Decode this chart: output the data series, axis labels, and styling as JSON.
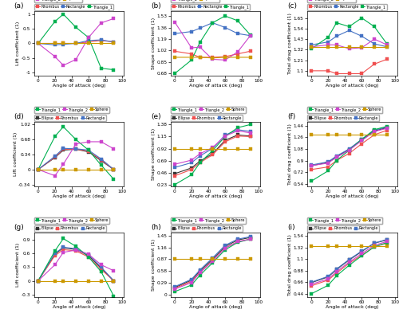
{
  "x": [
    0,
    20,
    30,
    45,
    60,
    75,
    90
  ],
  "panels": {
    "a": {
      "title": "(a)",
      "ylabel": "Lift coefficient (1)",
      "xlabel": "Angle of attack (deg)",
      "ylim": [
        -1.1,
        1.1
      ],
      "yticks": [
        -1.0,
        -0.5,
        0.0,
        0.5,
        1.0
      ],
      "n_series": 5,
      "series": {
        "Rhombus": [
          0.0,
          0.0,
          0.0,
          0.0,
          0.05,
          0.1,
          0.05
        ],
        "Rectangle": [
          0.0,
          -0.05,
          -0.03,
          0.0,
          0.1,
          0.12,
          0.05
        ],
        "Triangle_1": [
          0.0,
          0.75,
          1.0,
          0.55,
          0.2,
          -0.85,
          -0.9
        ],
        "Triangle_2": [
          0.0,
          -0.45,
          -0.75,
          -0.55,
          0.2,
          0.7,
          0.85
        ],
        "Sphere": [
          0.0,
          0.0,
          0.0,
          0.0,
          0.0,
          0.0,
          0.0
        ]
      }
    },
    "b": {
      "title": "(b)",
      "ylabel": "Shape coefficient (1)",
      "xlabel": "Angle of attack (deg)",
      "ylim": [
        0.65,
        1.6
      ],
      "yticks": [
        0.68,
        0.85,
        1.02,
        1.19,
        1.36,
        1.53
      ],
      "n_series": 5,
      "series": {
        "Rhombus": [
          1.01,
          0.97,
          0.92,
          0.92,
          0.93,
          0.97,
          1.01
        ],
        "Rectangle": [
          1.27,
          1.3,
          1.35,
          1.43,
          1.36,
          1.27,
          1.24
        ],
        "Triangle_1": [
          0.68,
          0.88,
          1.14,
          1.43,
          1.53,
          1.46,
          1.25
        ],
        "Triangle_2": [
          1.44,
          1.06,
          1.07,
          0.89,
          0.88,
          1.0,
          1.24
        ],
        "Sphere": [
          0.92,
          0.92,
          0.92,
          0.91,
          0.92,
          0.92,
          0.92
        ]
      }
    },
    "c": {
      "title": "(c)",
      "ylabel": "Total drag coefficient (1)",
      "xlabel": "Angle of attack (deg)",
      "ylim": [
        1.05,
        1.72
      ],
      "yticks": [
        1.1,
        1.21,
        1.32,
        1.43,
        1.54,
        1.65
      ],
      "n_series": 5,
      "series": {
        "Rhombus": [
          1.1,
          1.1,
          1.07,
          1.07,
          1.07,
          1.17,
          1.22
        ],
        "Rectangle": [
          1.37,
          1.4,
          1.46,
          1.52,
          1.46,
          1.38,
          1.35
        ],
        "Triangle_1": [
          1.33,
          1.45,
          1.6,
          1.56,
          1.65,
          1.56,
          1.38
        ],
        "Triangle_2": [
          1.35,
          1.37,
          1.37,
          1.33,
          1.34,
          1.43,
          1.37
        ],
        "Sphere": [
          1.35,
          1.35,
          1.35,
          1.35,
          1.35,
          1.35,
          1.35
        ]
      }
    },
    "d": {
      "title": "(d)",
      "ylabel": "Lift coefficient (1)",
      "xlabel": "Angle of attack (deg)",
      "ylim": [
        -0.38,
        1.08
      ],
      "yticks": [
        -0.34,
        0.0,
        0.34,
        0.68,
        1.02
      ],
      "n_series": 6,
      "series": {
        "Ellipse": [
          0.0,
          0.27,
          0.44,
          0.46,
          0.4,
          0.2,
          0.0
        ],
        "Rhombus": [
          0.0,
          0.28,
          0.46,
          0.46,
          0.42,
          0.22,
          0.0
        ],
        "Rectangle": [
          0.0,
          0.3,
          0.48,
          0.47,
          0.44,
          0.24,
          0.0
        ],
        "Triangle_1": [
          0.0,
          0.75,
          0.97,
          0.68,
          0.44,
          0.1,
          -0.22
        ],
        "Triangle_2": [
          0.0,
          -0.14,
          0.12,
          0.58,
          0.63,
          0.63,
          0.47
        ],
        "Sphere": [
          0.0,
          0.0,
          0.0,
          0.0,
          0.0,
          0.0,
          0.0
        ]
      }
    },
    "e": {
      "title": "(e)",
      "ylabel": "Shape coefficient (1)",
      "xlabel": "Angle of attack (deg)",
      "ylim": [
        0.2,
        1.43
      ],
      "yticks": [
        0.23,
        0.46,
        0.69,
        0.92,
        1.15,
        1.38
      ],
      "n_series": 6,
      "series": {
        "Ellipse": [
          0.44,
          0.55,
          0.68,
          0.82,
          1.08,
          1.18,
          1.16
        ],
        "Rhombus": [
          0.4,
          0.52,
          0.65,
          0.8,
          1.05,
          1.16,
          1.15
        ],
        "Rectangle": [
          0.56,
          0.65,
          0.78,
          0.92,
          1.18,
          1.28,
          1.25
        ],
        "Triangle_1": [
          0.23,
          0.42,
          0.65,
          0.88,
          1.15,
          1.32,
          1.38
        ],
        "Triangle_2": [
          0.62,
          0.7,
          0.82,
          0.94,
          1.16,
          1.26,
          1.22
        ],
        "Sphere": [
          0.92,
          0.92,
          0.92,
          0.92,
          0.92,
          0.92,
          0.92
        ]
      }
    },
    "f": {
      "title": "(f)",
      "ylabel": "Total drag coefficient (1)",
      "xlabel": "Angle of attack (deg)",
      "ylim": [
        0.5,
        1.5
      ],
      "yticks": [
        0.54,
        0.72,
        0.9,
        1.08,
        1.26,
        1.44
      ],
      "n_series": 6,
      "series": {
        "Ellipse": [
          0.82,
          0.87,
          0.96,
          1.07,
          1.22,
          1.36,
          1.41
        ],
        "Rhombus": [
          0.76,
          0.8,
          0.9,
          1.01,
          1.16,
          1.3,
          1.37
        ],
        "Rectangle": [
          0.83,
          0.88,
          0.97,
          1.08,
          1.23,
          1.37,
          1.42
        ],
        "Triangle_1": [
          0.58,
          0.74,
          0.9,
          1.06,
          1.23,
          1.38,
          1.43
        ],
        "Triangle_2": [
          0.82,
          0.86,
          0.95,
          1.06,
          1.21,
          1.35,
          1.4
        ],
        "Sphere": [
          1.3,
          1.3,
          1.3,
          1.3,
          1.3,
          1.3,
          1.3
        ]
      }
    },
    "g": {
      "title": "(g)",
      "ylabel": "Lift coefficient (1)",
      "xlabel": "Angle of attack (deg)",
      "ylim": [
        -0.35,
        1.05
      ],
      "yticks": [
        -0.3,
        0.0,
        0.3,
        0.6,
        0.9
      ],
      "n_series": 6,
      "series": {
        "Ellipse": [
          0.0,
          0.58,
          0.72,
          0.68,
          0.55,
          0.28,
          0.0
        ],
        "Rhombus": [
          0.0,
          0.55,
          0.68,
          0.65,
          0.52,
          0.25,
          0.0
        ],
        "Rectangle": [
          0.0,
          0.6,
          0.73,
          0.7,
          0.57,
          0.3,
          0.0
        ],
        "Triangle_1": [
          0.0,
          0.65,
          0.92,
          0.75,
          0.52,
          0.2,
          -0.33
        ],
        "Triangle_2": [
          0.0,
          0.35,
          0.62,
          0.67,
          0.58,
          0.35,
          0.22
        ],
        "Sphere": [
          0.0,
          0.0,
          0.0,
          0.0,
          0.0,
          0.0,
          0.0
        ]
      }
    },
    "h": {
      "title": "(h)",
      "ylabel": "Shape coefficient (1)",
      "xlabel": "Angle of attack (deg)",
      "ylim": [
        -0.05,
        1.52
      ],
      "yticks": [
        0.0,
        0.29,
        0.58,
        0.87,
        1.16,
        1.45
      ],
      "n_series": 6,
      "series": {
        "Ellipse": [
          0.18,
          0.36,
          0.58,
          0.87,
          1.18,
          1.34,
          1.4
        ],
        "Rhombus": [
          0.16,
          0.33,
          0.55,
          0.83,
          1.14,
          1.3,
          1.36
        ],
        "Rectangle": [
          0.2,
          0.38,
          0.61,
          0.9,
          1.21,
          1.36,
          1.42
        ],
        "Triangle_1": [
          0.08,
          0.24,
          0.48,
          0.78,
          1.1,
          1.28,
          1.36
        ],
        "Triangle_2": [
          0.14,
          0.3,
          0.54,
          0.82,
          1.14,
          1.3,
          1.36
        ],
        "Sphere": [
          0.87,
          0.87,
          0.87,
          0.87,
          0.87,
          0.87,
          0.87
        ]
      }
    },
    "i": {
      "title": "(i)",
      "ylabel": "Total drag coefficient (1)",
      "xlabel": "Angle of attack (deg)",
      "ylim": [
        0.38,
        1.6
      ],
      "yticks": [
        0.44,
        0.66,
        0.88,
        1.1,
        1.32,
        1.54
      ],
      "n_series": 6,
      "series": {
        "Ellipse": [
          0.65,
          0.76,
          0.9,
          1.08,
          1.24,
          1.4,
          1.46
        ],
        "Rhombus": [
          0.59,
          0.7,
          0.83,
          1.02,
          1.17,
          1.33,
          1.4
        ],
        "Rectangle": [
          0.66,
          0.77,
          0.91,
          1.09,
          1.25,
          1.4,
          1.47
        ],
        "Triangle_1": [
          0.44,
          0.6,
          0.78,
          0.98,
          1.16,
          1.33,
          1.41
        ],
        "Triangle_2": [
          0.62,
          0.72,
          0.86,
          1.04,
          1.2,
          1.36,
          1.43
        ],
        "Sphere": [
          1.35,
          1.35,
          1.35,
          1.35,
          1.35,
          1.35,
          1.35
        ]
      }
    }
  },
  "colors_5": {
    "Rhombus": "#f05050",
    "Rectangle": "#4472c4",
    "Triangle_1": "#00b050",
    "Triangle_2": "#cc44cc",
    "Sphere": "#cc9900"
  },
  "colors_6": {
    "Ellipse": "#333333",
    "Rhombus": "#f05050",
    "Rectangle": "#4472c4",
    "Triangle_1": "#00b050",
    "Triangle_2": "#cc44cc",
    "Sphere": "#cc9900"
  },
  "marker": "s",
  "markersize": 2.8,
  "linewidth": 0.8
}
